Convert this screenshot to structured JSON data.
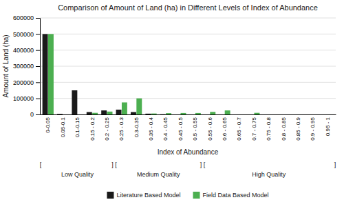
{
  "chart_data": {
    "type": "bar",
    "title": "Comparison of Amount of Land (ha) in Different Levels of Index of Abundance",
    "x_label": "Index of Abundance",
    "y_label": "Amount of Land (ha)",
    "categories": [
      "0-0.05",
      "0.05-0.1",
      "0.1-0.15",
      "0.15 - 0.2",
      "0.2 - 0.25",
      "0.25 - 0.3",
      "0.3-0.35",
      "0.35 - 0.4",
      "0.4 - 0.45",
      "0.45 - 0.5",
      "0.5 - 0.55",
      "0.55 - 0.6",
      "0.6 - 0.65",
      "0.65 - 0.7",
      "0.7 - 0.75",
      "0.75 - 0.8",
      "0.8 - 0.85",
      "0.85 - 0.9",
      "0.9 - 0.95",
      "0.95 - 1"
    ],
    "series": [
      {
        "name": "Literature Based Model",
        "color": "#1a1a1a",
        "values": [
          500000,
          3500,
          150000,
          15000,
          25000,
          30000,
          15000,
          5000,
          1500,
          0,
          0,
          0,
          0,
          0,
          0,
          0,
          0,
          0,
          0,
          0
        ]
      },
      {
        "name": "Field Data Based Model",
        "color": "#4caf50",
        "values": [
          500000,
          0,
          0,
          10000,
          18000,
          75000,
          100000,
          6000,
          8000,
          9000,
          9000,
          16000,
          25000,
          0,
          10000,
          0,
          0,
          0,
          0,
          0
        ]
      }
    ],
    "ylim": [
      0,
      600000
    ],
    "yticks": [
      0,
      100000,
      200000,
      300000,
      400000,
      500000,
      600000
    ],
    "grid": true,
    "legend": "bottom",
    "annotations": [
      {
        "text": "[",
        "before": "0-0.05"
      },
      {
        "text": "Low Quality",
        "from": "0-0.05",
        "to": "0.2 - 0.25"
      },
      {
        "text": "] [",
        "before": "0.25 - 0.3"
      },
      {
        "text": "Medium Quality",
        "from": "0.25 - 0.3",
        "to": "0.5 - 0.55"
      },
      {
        "text": "] [",
        "before": "0.55 - 0.6"
      },
      {
        "text": "High Quality",
        "from": "0.55 - 0.6",
        "to": "0.95 - 1"
      },
      {
        "text": "]",
        "after": "0.95 - 1"
      }
    ]
  }
}
